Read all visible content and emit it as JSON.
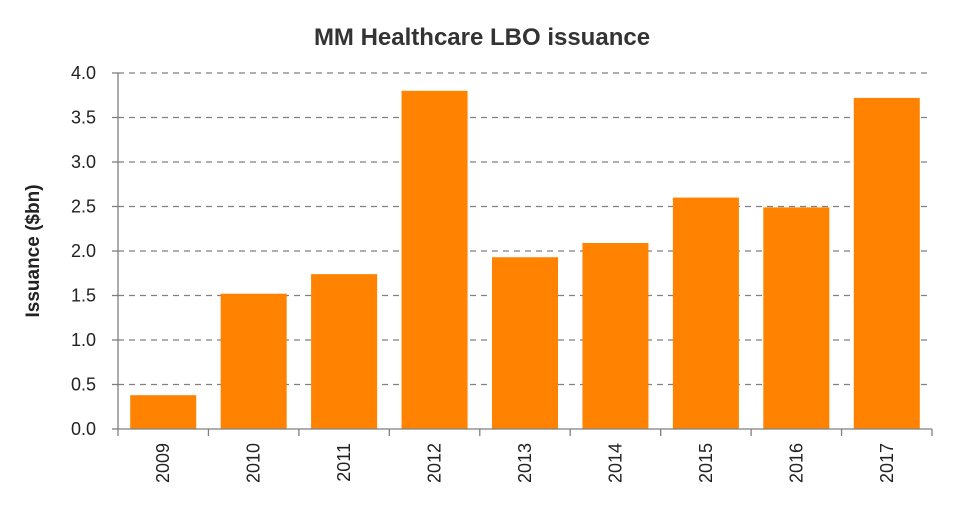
{
  "chart_data": {
    "type": "bar",
    "title": "MM Healthcare LBO issuance",
    "xlabel": "",
    "ylabel": "Issuance  ($bn)",
    "categories": [
      "2009",
      "2010",
      "2011",
      "2012",
      "2013",
      "2014",
      "2015",
      "2016",
      "2017"
    ],
    "values": [
      0.38,
      1.52,
      1.74,
      3.8,
      1.93,
      2.09,
      2.6,
      2.49,
      3.72
    ],
    "ylim": [
      0,
      4.0
    ],
    "yticks": [
      "0.0",
      "0.5",
      "1.0",
      "1.5",
      "2.0",
      "2.5",
      "3.0",
      "3.5",
      "4.0"
    ],
    "grid": true,
    "legend": "none",
    "bar_color": "#FF8200"
  }
}
